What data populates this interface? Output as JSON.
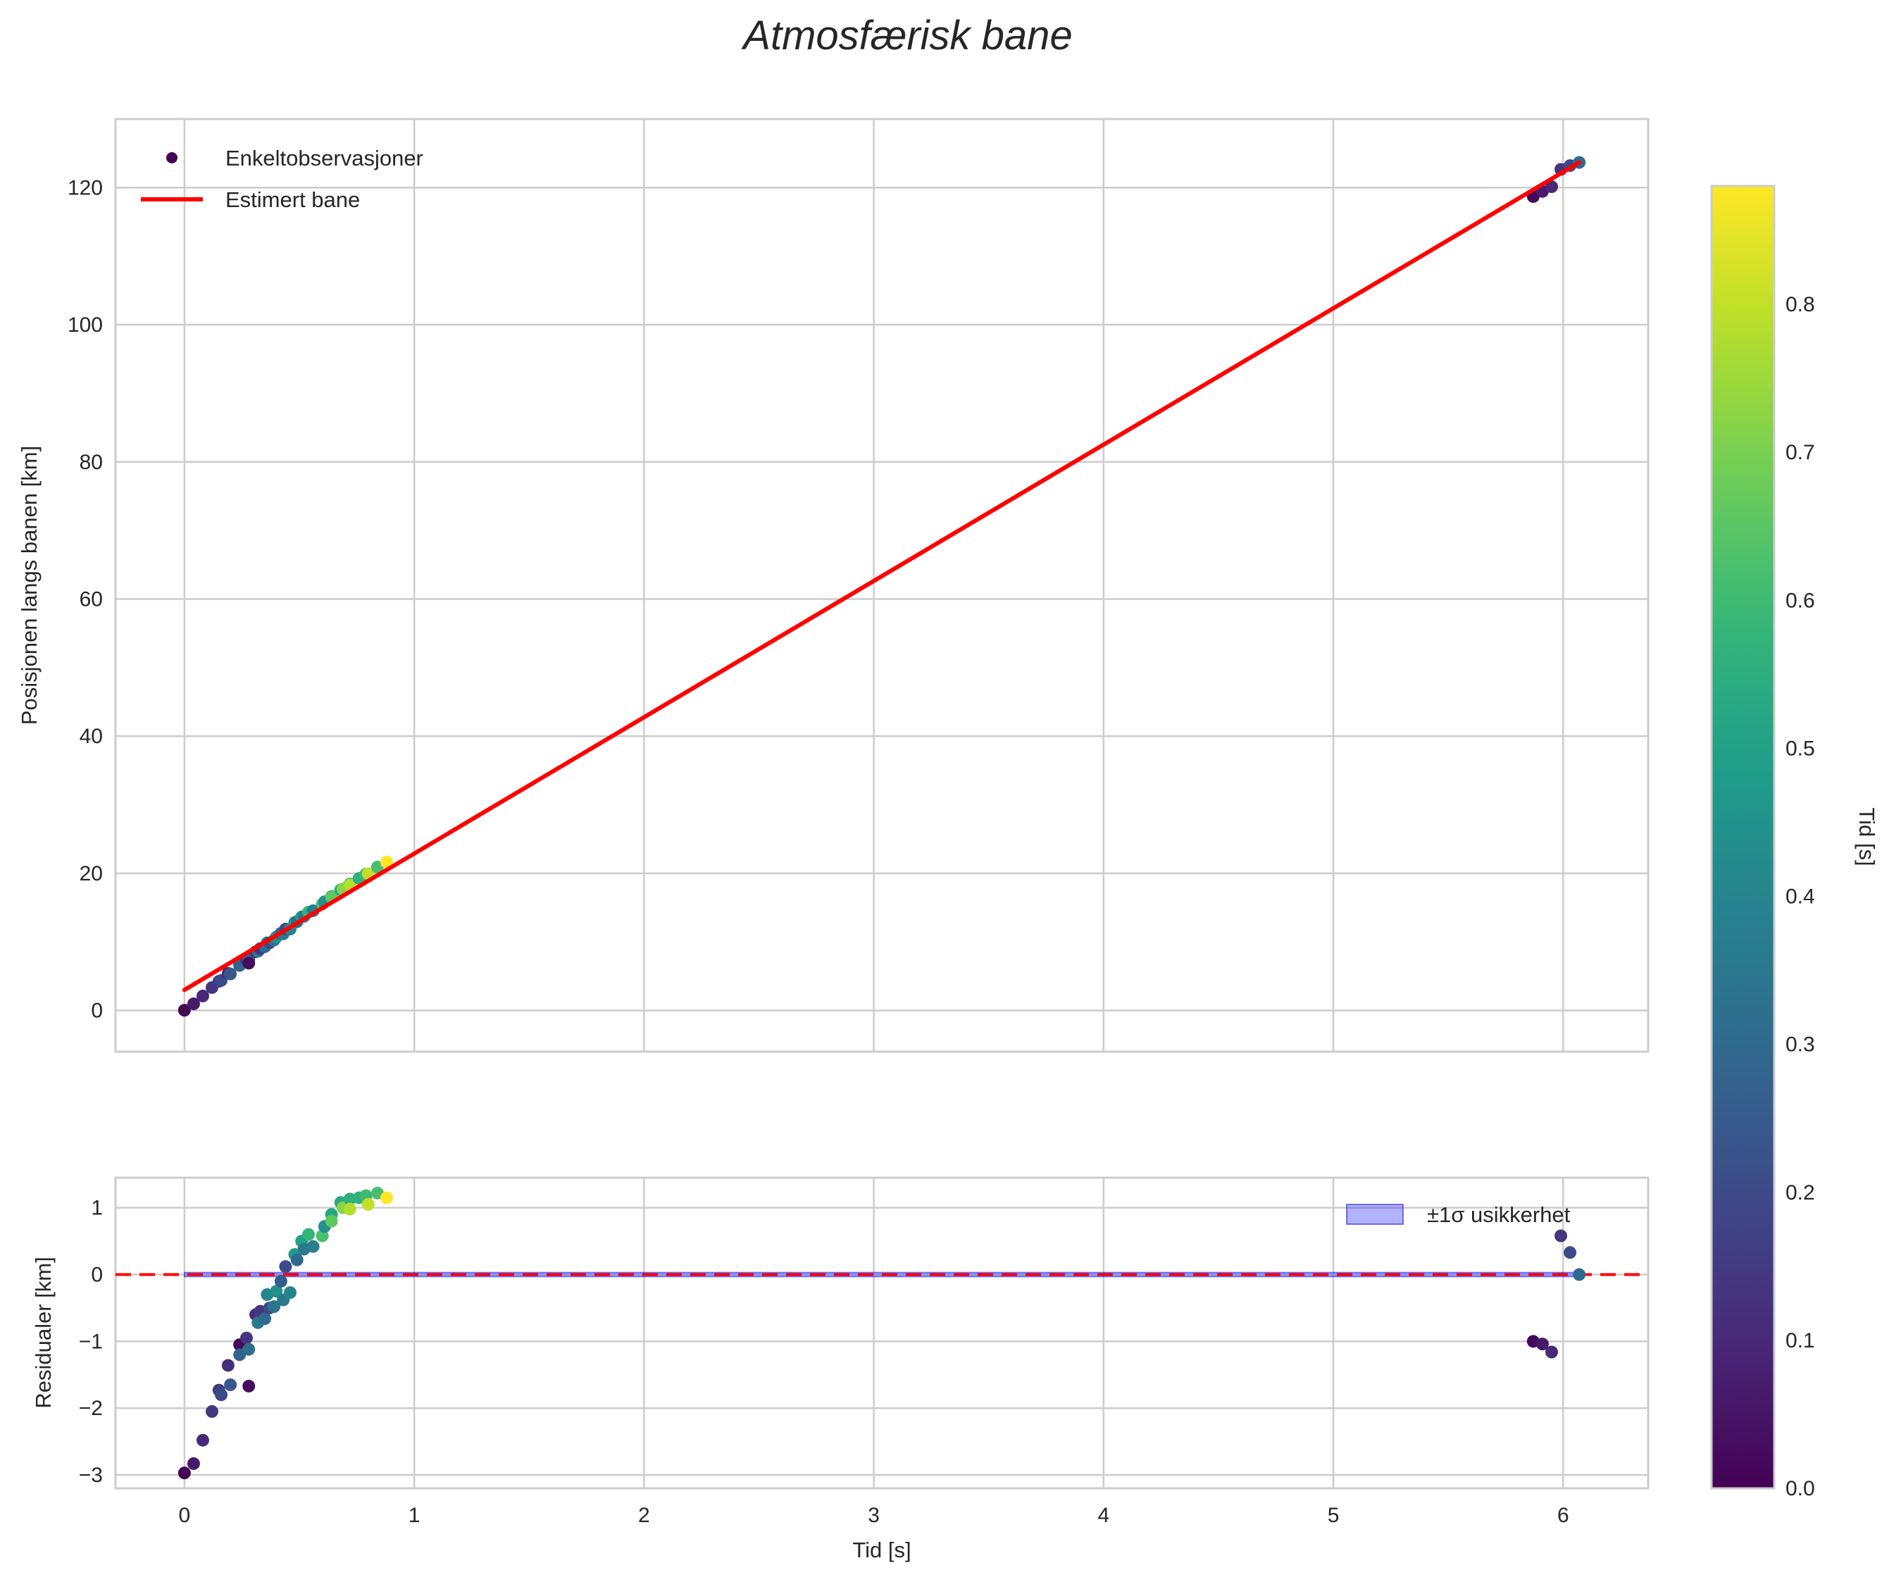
{
  "chart_data": {
    "type": "scatter",
    "title": "Atmosfærisk bane",
    "panels": [
      {
        "name": "position",
        "xlabel": "",
        "ylabel": "Posisjonen langs banen [km]",
        "xlim": [
          -0.3,
          6.37
        ],
        "ylim": [
          -6,
          130
        ],
        "yticks": [
          "0",
          "20",
          "40",
          "60",
          "80",
          "100",
          "120"
        ],
        "ytick_values": [
          0,
          20,
          40,
          60,
          80,
          100,
          120
        ],
        "grid": true,
        "legend": {
          "placement": "top-left",
          "entries": [
            "Enkeltobservasjoner",
            "Estimert bane"
          ]
        },
        "fit_line": {
          "label": "Estimert bane",
          "color": "#ff0000",
          "t": [
            0,
            6.07
          ],
          "y": [
            3.0,
            123.67
          ]
        }
      },
      {
        "name": "residuals",
        "xlabel": "Tid [s]",
        "ylabel": "Residualer [km]",
        "xlim": [
          -0.3,
          6.37
        ],
        "ylim": [
          -3.2,
          1.45
        ],
        "yticks": [
          "−3",
          "−2",
          "−1",
          "0",
          "1"
        ],
        "ytick_values": [
          -3,
          -2,
          -1,
          0,
          1
        ],
        "grid": true,
        "zero_line_color": "#ff0000",
        "band": {
          "label": "±1σ usikkerhet",
          "color": "#0000ff",
          "sigma": 0.03,
          "t": [
            0,
            6.07
          ]
        },
        "legend": {
          "placement": "top-right",
          "entries": [
            "±1σ usikkerhet"
          ]
        }
      }
    ],
    "xticks": [
      "0",
      "1",
      "2",
      "3",
      "4",
      "5",
      "6"
    ],
    "xtick_values": [
      0,
      1,
      2,
      3,
      4,
      5,
      6
    ],
    "colorbar": {
      "label": "Tid [s]",
      "range": [
        0,
        0.88
      ],
      "ticks": [
        "0.0",
        "0.1",
        "0.2",
        "0.3",
        "0.4",
        "0.5",
        "0.6",
        "0.7",
        "0.8"
      ],
      "tick_values": [
        0,
        0.1,
        0.2,
        0.3,
        0.4,
        0.5,
        0.6,
        0.7,
        0.8
      ],
      "colormap": "viridis"
    },
    "points": {
      "t": [
        0,
        0.04,
        0.08,
        0.12,
        0.15,
        0.16,
        0.19,
        0.2,
        0.24,
        0.24,
        0.27,
        0.28,
        0.28,
        0.31,
        0.32,
        0.33,
        0.35,
        0.36,
        0.37,
        0.39,
        0.4,
        0.42,
        0.43,
        0.44,
        0.46,
        0.48,
        0.49,
        0.51,
        0.52,
        0.54,
        0.56,
        0.6,
        0.61,
        0.64,
        0.64,
        0.68,
        0.69,
        0.72,
        0.72,
        0.76,
        0.79,
        0.8,
        0.84,
        0.88,
        5.87,
        5.91,
        5.95,
        5.99,
        6.03,
        6.07
      ],
      "position": [
        0.03,
        0.97,
        2.11,
        3.34,
        4.25,
        4.38,
        5.42,
        5.33,
        6.72,
        6.57,
        7.42,
        7.45,
        6.9,
        8.56,
        8.64,
        9.01,
        9.3,
        9.86,
        9.86,
        10.27,
        10.7,
        11.25,
        11.17,
        11.87,
        11.87,
        12.84,
        12.96,
        13.64,
        13.72,
        14.34,
        14.55,
        15.51,
        15.85,
        16.62,
        16.52,
        17.6,
        17.72,
        18.44,
        18.29,
        19.26,
        19.89,
        19.95,
        20.92,
        21.64,
        118.7,
        119.45,
        120.13,
        122.66,
        123.21,
        123.67
      ],
      "residual": [
        -2.97,
        -2.83,
        -2.48,
        -2.05,
        -1.73,
        -1.8,
        -1.36,
        -1.65,
        -1.05,
        -1.2,
        -0.95,
        -1.12,
        -1.67,
        -0.6,
        -0.72,
        -0.55,
        -0.66,
        -0.3,
        -0.5,
        -0.48,
        -0.25,
        -0.1,
        -0.38,
        0.12,
        -0.27,
        0.3,
        0.22,
        0.5,
        0.38,
        0.6,
        0.42,
        0.58,
        0.72,
        0.9,
        0.8,
        1.08,
        1.0,
        1.13,
        0.98,
        1.15,
        1.18,
        1.05,
        1.22,
        1.15,
        -1.0,
        -1.04,
        -1.16,
        0.58,
        0.33,
        0.0
      ],
      "color_value": [
        0.0,
        0.06,
        0.1,
        0.14,
        0.16,
        0.2,
        0.12,
        0.24,
        0.02,
        0.28,
        0.14,
        0.32,
        0.03,
        0.12,
        0.36,
        0.14,
        0.3,
        0.4,
        0.2,
        0.34,
        0.44,
        0.26,
        0.36,
        0.2,
        0.4,
        0.48,
        0.3,
        0.5,
        0.36,
        0.58,
        0.38,
        0.62,
        0.44,
        0.52,
        0.66,
        0.54,
        0.72,
        0.56,
        0.78,
        0.56,
        0.6,
        0.8,
        0.62,
        0.88,
        0.02,
        0.06,
        0.1,
        0.14,
        0.2,
        0.3
      ]
    }
  }
}
